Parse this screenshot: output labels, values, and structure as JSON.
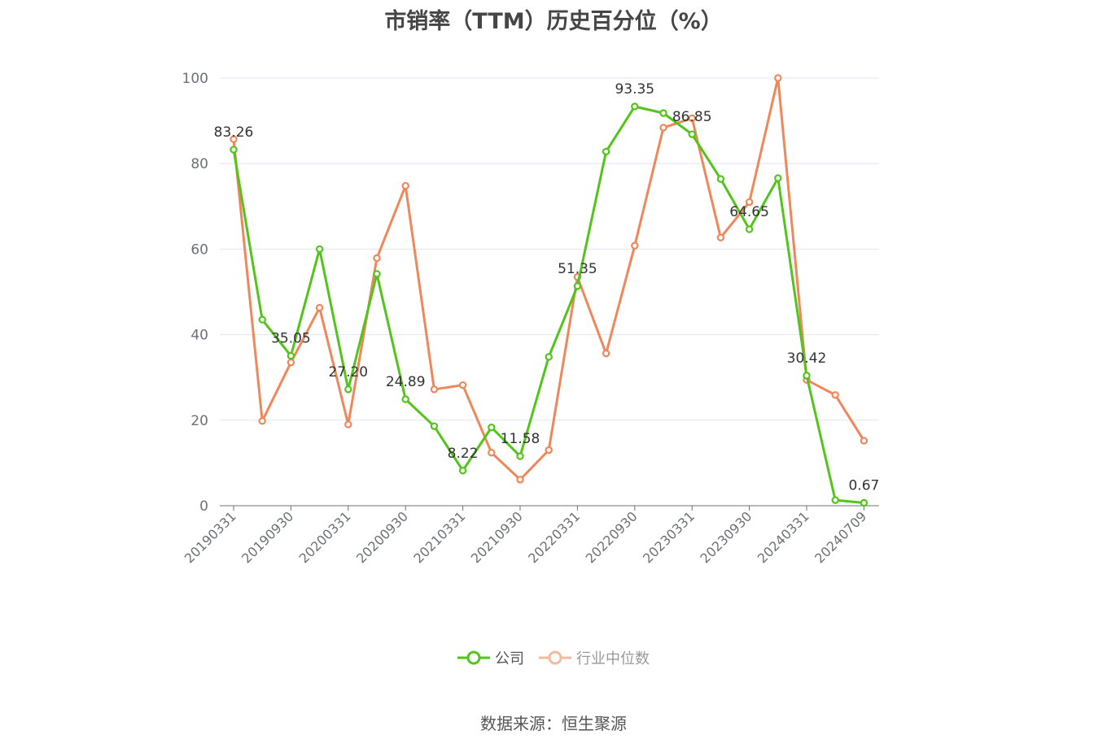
{
  "chart_data": {
    "type": "line",
    "title": "市销率（TTM）历史百分位（%）",
    "xlabel": "",
    "ylabel": "",
    "ylim": [
      0,
      100
    ],
    "yticks": [
      0,
      20,
      40,
      60,
      80,
      100
    ],
    "grid": true,
    "legend_position": "bottom",
    "x_tick_labels": [
      "20190331",
      "20190930",
      "20200331",
      "20200930",
      "20210331",
      "20210930",
      "20220331",
      "20220930",
      "20230331",
      "20230930",
      "20240331",
      "20240709"
    ],
    "x": [
      "20190331",
      "20190630",
      "20190930",
      "20191231",
      "20200331",
      "20200630",
      "20200930",
      "20201231",
      "20210331",
      "20210630",
      "20210930",
      "20211231",
      "20220331",
      "20220630",
      "20220930",
      "20221231",
      "20230331",
      "20230630",
      "20230930",
      "20231231",
      "20240331",
      "20240630",
      "20240709"
    ],
    "series": [
      {
        "name": "公司",
        "color": "#52c41a",
        "values": [
          83.26,
          43.5,
          35.05,
          60.0,
          27.2,
          54.2,
          24.89,
          18.6,
          8.22,
          18.3,
          11.58,
          34.8,
          51.35,
          82.8,
          93.35,
          91.8,
          86.85,
          76.4,
          64.65,
          76.6,
          30.42,
          1.3,
          0.67
        ],
        "labels": {
          "0": "83.26",
          "2": "35.05",
          "4": "27.20",
          "6": "24.89",
          "8": "8.22",
          "10": "11.58",
          "12": "51.35",
          "14": "93.35",
          "16": "86.85",
          "18": "64.65",
          "20": "30.42",
          "22": "0.67"
        }
      },
      {
        "name": "行业中位数",
        "color": "#f0875a",
        "values": [
          85.7,
          19.8,
          33.5,
          46.3,
          19.0,
          57.9,
          74.8,
          27.2,
          28.2,
          12.4,
          6.1,
          13.0,
          53.5,
          35.6,
          60.8,
          88.4,
          90.6,
          62.7,
          71.0,
          100.0,
          29.4,
          25.9,
          15.2
        ]
      }
    ]
  },
  "legend": {
    "items": [
      {
        "label": "公司"
      },
      {
        "label": "行业中位数"
      }
    ]
  },
  "source": "数据来源：恒生聚源"
}
